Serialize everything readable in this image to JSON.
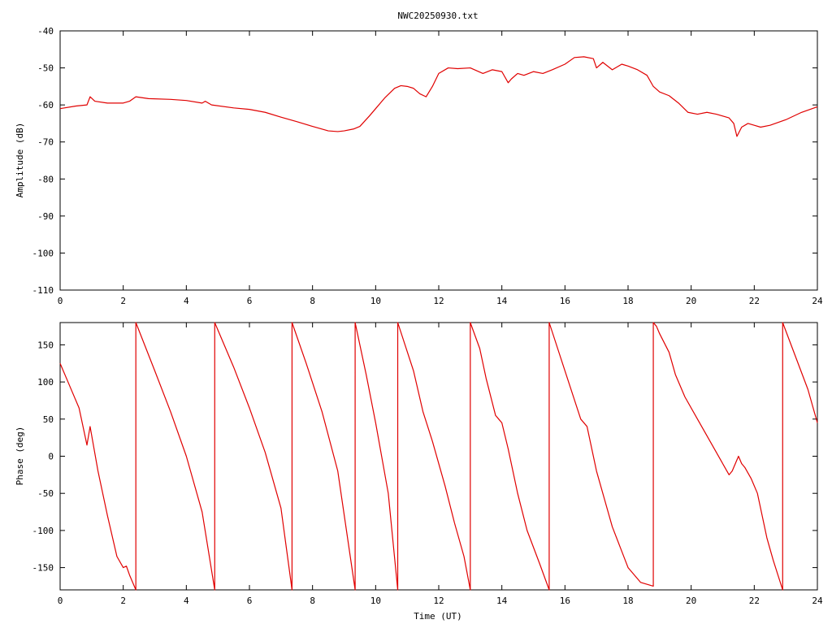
{
  "title": "NWC20250930.txt",
  "colors": {
    "trace": "#e00000",
    "axes": "#000000",
    "background": "#ffffff"
  },
  "chart_data": [
    {
      "type": "line",
      "title": "NWC20250930.txt",
      "xlabel": "",
      "ylabel": "Amplitude (dB)",
      "xlim": [
        0,
        24
      ],
      "ylim": [
        -110,
        -40
      ],
      "xticks": [
        "0",
        "2",
        "4",
        "6",
        "8",
        "10",
        "12",
        "14",
        "16",
        "18",
        "20",
        "22",
        "24"
      ],
      "yticks": [
        "-40",
        "-50",
        "-60",
        "-70",
        "-80",
        "-90",
        "-100",
        "-110"
      ],
      "grid": false,
      "series": [
        {
          "x": [
            0,
            0.5,
            0.85,
            0.95,
            1.1,
            1.5,
            2,
            2.2,
            2.4,
            2.8,
            3.5,
            4,
            4.5,
            4.6,
            4.8,
            5.5,
            6,
            6.5,
            7,
            7.5,
            8,
            8.5,
            8.8,
            9,
            9.3,
            9.5,
            9.8,
            10,
            10.3,
            10.6,
            10.8,
            11,
            11.2,
            11.4,
            11.6,
            11.8,
            12,
            12.3,
            12.6,
            13,
            13.4,
            13.7,
            14,
            14.2,
            14.3,
            14.5,
            14.7,
            15,
            15.3,
            15.6,
            16,
            16.3,
            16.6,
            16.9,
            17,
            17.2,
            17.5,
            17.8,
            18,
            18.3,
            18.6,
            18.8,
            19,
            19.3,
            19.6,
            19.9,
            20.2,
            20.5,
            20.8,
            21,
            21.2,
            21.35,
            21.45,
            21.6,
            21.8,
            22,
            22.2,
            22.5,
            23,
            23.5,
            24
          ],
          "values": [
            -61,
            -60.3,
            -60,
            -57.8,
            -59,
            -59.5,
            -59.5,
            -59,
            -57.8,
            -58.3,
            -58.5,
            -58.8,
            -59.5,
            -59,
            -60,
            -60.8,
            -61.2,
            -62,
            -63.3,
            -64.5,
            -65.8,
            -67,
            -67.2,
            -67,
            -66.5,
            -65.8,
            -63,
            -61,
            -58,
            -55.5,
            -54.8,
            -55,
            -55.5,
            -57,
            -57.8,
            -55,
            -51.5,
            -50,
            -50.2,
            -50,
            -51.5,
            -50.5,
            -51,
            -54,
            -53,
            -51.5,
            -52,
            -51,
            -51.5,
            -50.5,
            -49,
            -47.2,
            -47,
            -47.5,
            -50,
            -48.5,
            -50.5,
            -49,
            -49.5,
            -50.5,
            -52,
            -55,
            -56.5,
            -57.5,
            -59.5,
            -62,
            -62.5,
            -62,
            -62.5,
            -63,
            -63.5,
            -65,
            -68.5,
            -66,
            -65,
            -65.5,
            -66,
            -65.5,
            -64,
            -62,
            -60.5
          ]
        }
      ]
    },
    {
      "type": "line",
      "title": "",
      "xlabel": "Time (UT)",
      "ylabel": "Phase (deg)",
      "xlim": [
        0,
        24
      ],
      "ylim": [
        -180,
        180
      ],
      "xticks": [
        "0",
        "2",
        "4",
        "6",
        "8",
        "10",
        "12",
        "14",
        "16",
        "18",
        "20",
        "22",
        "24"
      ],
      "yticks": [
        "150",
        "100",
        "50",
        "0",
        "-50",
        "-100",
        "-150"
      ],
      "grid": false,
      "series": [
        {
          "x": [
            0,
            0.3,
            0.6,
            0.75,
            0.85,
            0.95,
            1.2,
            1.5,
            1.8,
            2.0,
            2.1,
            2.2,
            2.4,
            2.4,
            3.0,
            3.5,
            4.0,
            4.5,
            4.9,
            4.9,
            5.5,
            6.0,
            6.5,
            7.0,
            7.35,
            7.35,
            7.8,
            8.3,
            8.8,
            9.35,
            9.35,
            9.7,
            10.0,
            10.4,
            10.7,
            10.7,
            11.2,
            11.5,
            11.8,
            12.2,
            12.5,
            12.8,
            13.0,
            13.0,
            13.3,
            13.5,
            13.8,
            13.9,
            14.0,
            14.2,
            14.5,
            14.8,
            15.2,
            15.5,
            15.5,
            16.0,
            16.5,
            16.7,
            17.0,
            17.5,
            18.0,
            18.4,
            18.8,
            18.8,
            18.9,
            19.0,
            19.3,
            19.5,
            19.8,
            20.2,
            20.6,
            21.0,
            21.2,
            21.3,
            21.5,
            21.6,
            21.7,
            21.9,
            22.1,
            22.4,
            22.6,
            22.9,
            22.9,
            23.3,
            23.7,
            24.0
          ],
          "values": [
            125,
            95,
            65,
            35,
            15,
            40,
            -20,
            -80,
            -135,
            -150,
            -148,
            -160,
            -180,
            180,
            115,
            60,
            0,
            -75,
            -180,
            180,
            120,
            65,
            5,
            -70,
            -180,
            180,
            125,
            60,
            -20,
            -180,
            180,
            110,
            45,
            -50,
            -180,
            180,
            115,
            60,
            20,
            -40,
            -90,
            -135,
            -180,
            180,
            145,
            105,
            55,
            50,
            45,
            10,
            -50,
            -100,
            -145,
            -180,
            180,
            115,
            50,
            40,
            -20,
            -95,
            -150,
            -170,
            -175,
            180,
            175,
            165,
            140,
            110,
            80,
            50,
            20,
            -10,
            -25,
            -20,
            0,
            -10,
            -15,
            -30,
            -50,
            -110,
            -140,
            -180,
            180,
            135,
            90,
            45
          ]
        }
      ]
    }
  ]
}
